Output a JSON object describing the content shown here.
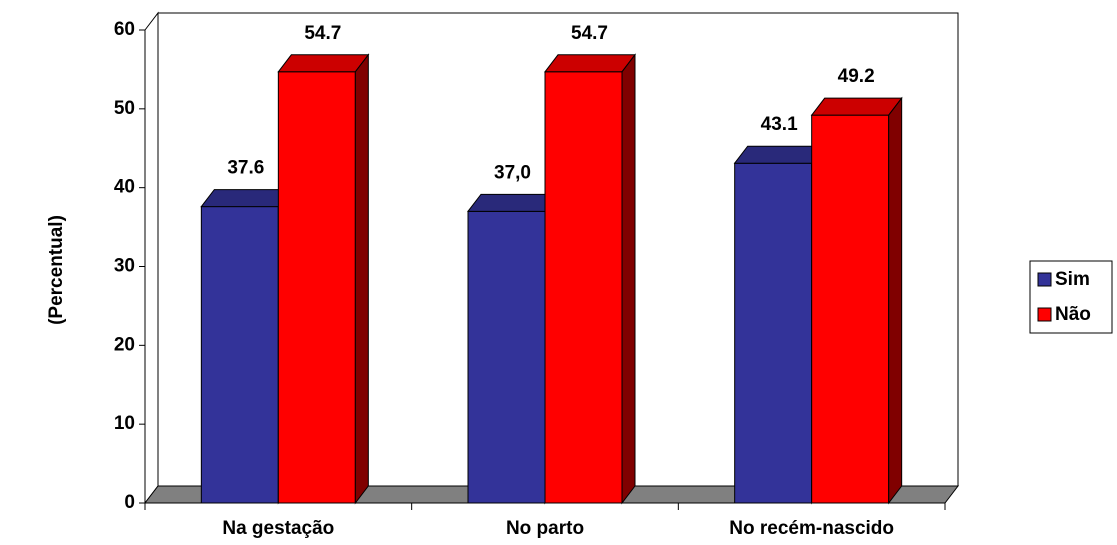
{
  "chart_data": {
    "type": "bar3d",
    "y_label": "(Percentual)",
    "categories": [
      "Na gestação",
      "No parto",
      "No recém-nascido"
    ],
    "series": [
      {
        "name": "Sim",
        "color": "#333399",
        "values": [
          37.6,
          37,
          43.1
        ],
        "value_labels": [
          "37.6",
          "37,0",
          "43.1"
        ]
      },
      {
        "name": "Não",
        "color": "#ff0000",
        "values": [
          54.7,
          54.7,
          49.2
        ]
      }
    ],
    "ylim": [
      0,
      60
    ],
    "yticks": [
      0,
      10,
      20,
      30,
      40,
      50,
      60
    ],
    "legend": "right"
  }
}
